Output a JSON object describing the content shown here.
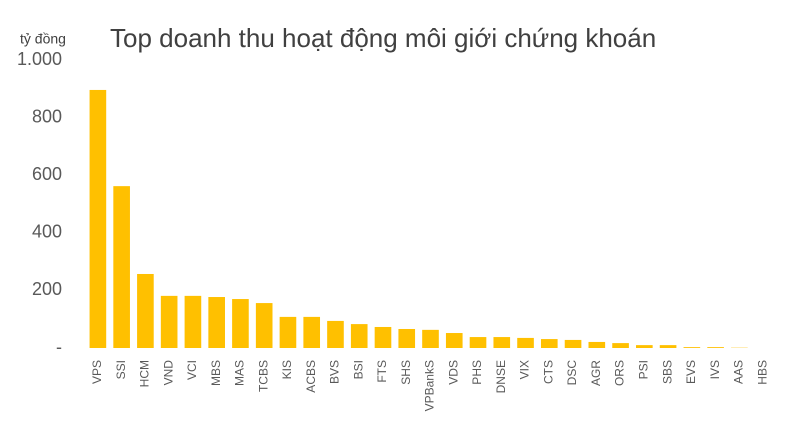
{
  "chart_data": {
    "type": "bar",
    "title": "Top doanh thu hoạt động môi giới chứng khoán",
    "y_label": "tỷ đồng",
    "categories": [
      "VPS",
      "SSI",
      "HCM",
      "VND",
      "VCI",
      "MBS",
      "MAS",
      "TCBS",
      "KIS",
      "ACBS",
      "BVS",
      "BSI",
      "FTS",
      "SHS",
      "VPBankS",
      "VDS",
      "PHS",
      "DNSE",
      "VIX",
      "CTS",
      "DSC",
      "AGR",
      "ORS",
      "PSI",
      "SBS",
      "EVS",
      "IVS",
      "AAS",
      "HBS"
    ],
    "values": [
      896,
      562,
      257,
      181,
      181,
      177,
      170,
      156,
      108,
      108,
      94,
      83,
      73,
      66,
      63,
      52,
      38,
      38,
      35,
      31,
      28,
      21,
      17,
      10,
      10,
      3,
      3,
      1,
      0
    ],
    "color": "#FFC000",
    "ylim": [
      0,
      1000
    ],
    "yticks": [
      {
        "value": 0,
        "label": "-"
      },
      200,
      400,
      600,
      800,
      {
        "value": 1000,
        "label": "1.000"
      }
    ],
    "grid": false
  }
}
